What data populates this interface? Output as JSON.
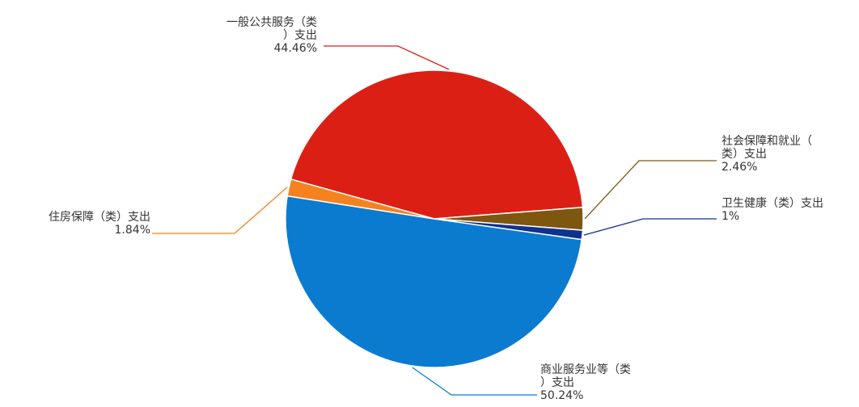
{
  "chart_data": {
    "type": "pie",
    "title": "",
    "slices": [
      {
        "label_lines": [
          "商业服务业等（类",
          "）支出"
        ],
        "value_text": "50.24%",
        "value": 50.24,
        "color": "#0b7bd0",
        "line_color": "#0b7bd0"
      },
      {
        "label_lines": [
          "住房保障（类）支出"
        ],
        "value_text": "1.84%",
        "value": 1.84,
        "color": "#f5821f",
        "line_color": "#f5821f"
      },
      {
        "label_lines": [
          "一般公共服务（类",
          "）支出"
        ],
        "value_text": "44.46%",
        "value": 44.46,
        "color": "#dc1f15",
        "line_color": "#dc1f15"
      },
      {
        "label_lines": [
          "社会保障和就业（",
          "类）支出"
        ],
        "value_text": "2.46%",
        "value": 2.46,
        "color": "#7d5610",
        "line_color": "#7d5610"
      },
      {
        "label_lines": [
          "卫生健康（类）支出"
        ],
        "value_text": "1%",
        "value": 1,
        "color": "#10328f",
        "line_color": "#10328f"
      }
    ]
  }
}
